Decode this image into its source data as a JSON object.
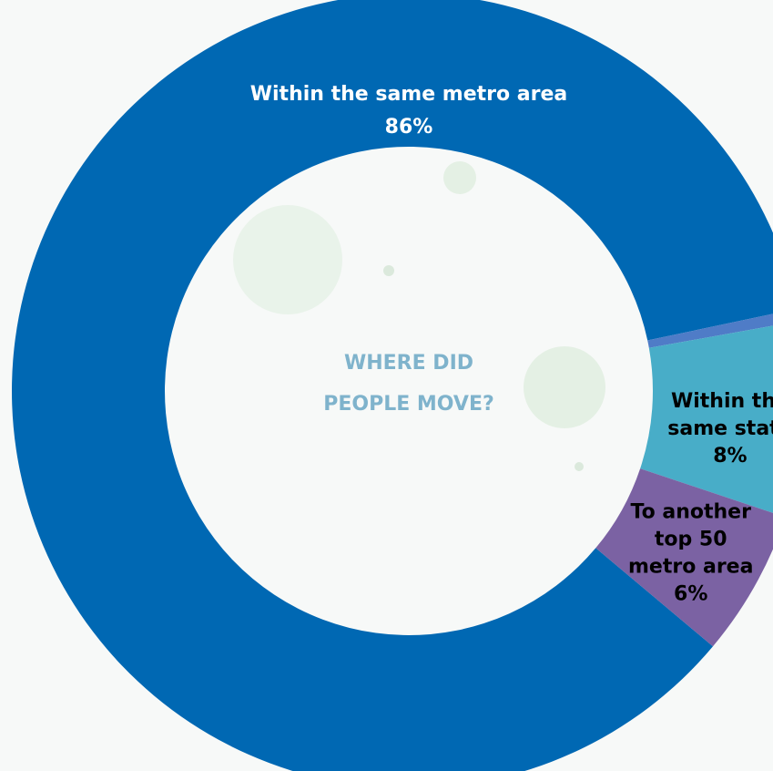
{
  "chart_data": {
    "type": "pie",
    "donut": true,
    "center_label": [
      "WHERE DID",
      "PEOPLE MOVE?"
    ],
    "slices": [
      {
        "label": [
          "Within the same metro area"
        ],
        "percent_text": "86%",
        "value": 86,
        "color": "#0068b3"
      },
      {
        "label": [],
        "percent_text": "",
        "value": 0.5,
        "color": "#4f7cc7"
      },
      {
        "label": [
          "Within the",
          "same state"
        ],
        "percent_text": "8%",
        "value": 8,
        "color": "#48adc8"
      },
      {
        "label": [
          "To another",
          "top 50",
          "metro area"
        ],
        "percent_text": "6%",
        "value": 6,
        "color": "#7b62a3"
      }
    ],
    "label_colors": {
      "dark_slice": "#ffffff",
      "light_slice": "#000000"
    }
  }
}
